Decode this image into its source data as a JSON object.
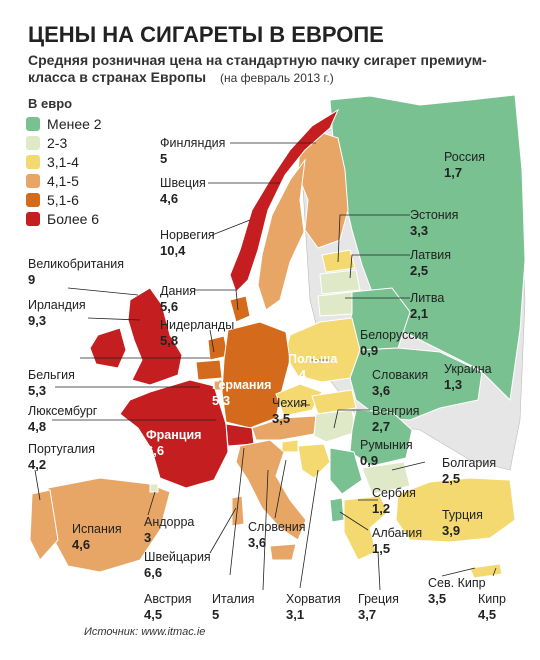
{
  "header": {
    "title": "ЦЕНЫ НА СИГАРЕТЫ В ЕВРОПЕ",
    "subtitle": "Средняя розничная цена на стандартную пачку сигарет премиум-класса в странах Европы",
    "date_note": "(на февраль 2013 г.)"
  },
  "legend": {
    "unit": "В евро",
    "items": [
      {
        "label": "Менее 2",
        "color": "#79c191"
      },
      {
        "label": "2-3",
        "color": "#dfe9c7"
      },
      {
        "label": "3,1-4",
        "color": "#f3d96f"
      },
      {
        "label": "4,1-5",
        "color": "#e7a666"
      },
      {
        "label": "5,1-6",
        "color": "#d46b1c"
      },
      {
        "label": "Более 6",
        "color": "#c41e20"
      }
    ]
  },
  "countries": [
    {
      "name": "Россия",
      "value": "1,7"
    },
    {
      "name": "Финляндия",
      "value": "5"
    },
    {
      "name": "Швеция",
      "value": "4,6"
    },
    {
      "name": "Норвегия",
      "value": "10,4"
    },
    {
      "name": "Эстония",
      "value": "3,3"
    },
    {
      "name": "Латвия",
      "value": "2,5"
    },
    {
      "name": "Литва",
      "value": "2,1"
    },
    {
      "name": "Великобритания",
      "value": "9"
    },
    {
      "name": "Дания",
      "value": "5,6"
    },
    {
      "name": "Ирландия",
      "value": "9,3"
    },
    {
      "name": "Нидерланды",
      "value": "5,8"
    },
    {
      "name": "Белоруссия",
      "value": "0,9"
    },
    {
      "name": "Польша",
      "value": "3,4"
    },
    {
      "name": "Украина",
      "value": "1,3"
    },
    {
      "name": "Словакия",
      "value": "3,6"
    },
    {
      "name": "Бельгия",
      "value": "5,3"
    },
    {
      "name": "Германия",
      "value": "5,3"
    },
    {
      "name": "Чехия",
      "value": "3,5"
    },
    {
      "name": "Люксембург",
      "value": "4,8"
    },
    {
      "name": "Венгрия",
      "value": "2,7"
    },
    {
      "name": "Румыния",
      "value": "0,9"
    },
    {
      "name": "Португалия",
      "value": "4,2"
    },
    {
      "name": "Франция",
      "value": "6,6"
    },
    {
      "name": "Болгария",
      "value": "2,5"
    },
    {
      "name": "Сербия",
      "value": "1,2"
    },
    {
      "name": "Испания",
      "value": "4,6"
    },
    {
      "name": "Андорра",
      "value": "3"
    },
    {
      "name": "Словения",
      "value": "3,6"
    },
    {
      "name": "Албания",
      "value": "1,5"
    },
    {
      "name": "Турция",
      "value": "3,9"
    },
    {
      "name": "Швейцария",
      "value": "6,6"
    },
    {
      "name": "Австрия",
      "value": "4,5"
    },
    {
      "name": "Италия",
      "value": "5"
    },
    {
      "name": "Хорватия",
      "value": "3,1"
    },
    {
      "name": "Греция",
      "value": "3,7"
    },
    {
      "name": "Сев. Кипр",
      "value": "3,5"
    },
    {
      "name": "Кипр",
      "value": "4,5"
    }
  ],
  "source": "Источник: www.itmac.ie"
}
